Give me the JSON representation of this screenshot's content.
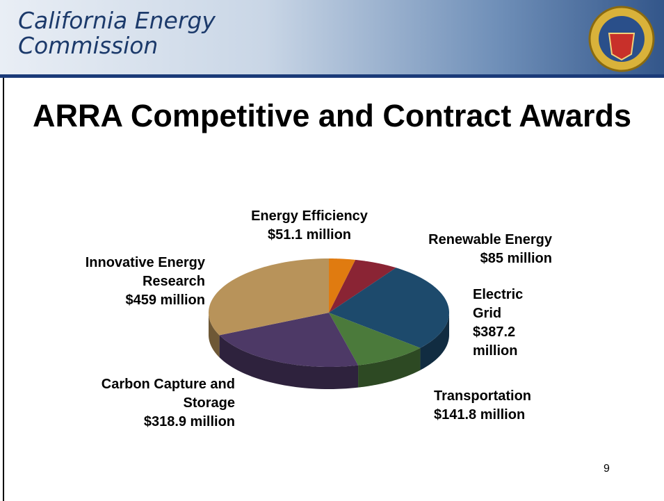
{
  "header": {
    "title": "California Energy Commission"
  },
  "page_number": 9,
  "chart_data": {
    "type": "pie",
    "title": "ARRA Competitive and Contract Awards",
    "categories": [
      "Energy Efficiency",
      "Renewable Energy",
      "Electric Grid",
      "Transportation",
      "Carbon Capture and Storage",
      "Innovative Energy Research"
    ],
    "values": [
      51.1,
      85,
      387.2,
      141.8,
      318.9,
      459
    ],
    "value_labels": [
      "$51.1 million",
      "$85 million",
      "$387.2 million",
      "$141.8 million",
      "$318.9 million",
      "$459 million"
    ],
    "colors": [
      "#e07b10",
      "#8a2434",
      "#1d4a6c",
      "#4b7a3b",
      "#4d3966",
      "#b8935a"
    ]
  }
}
